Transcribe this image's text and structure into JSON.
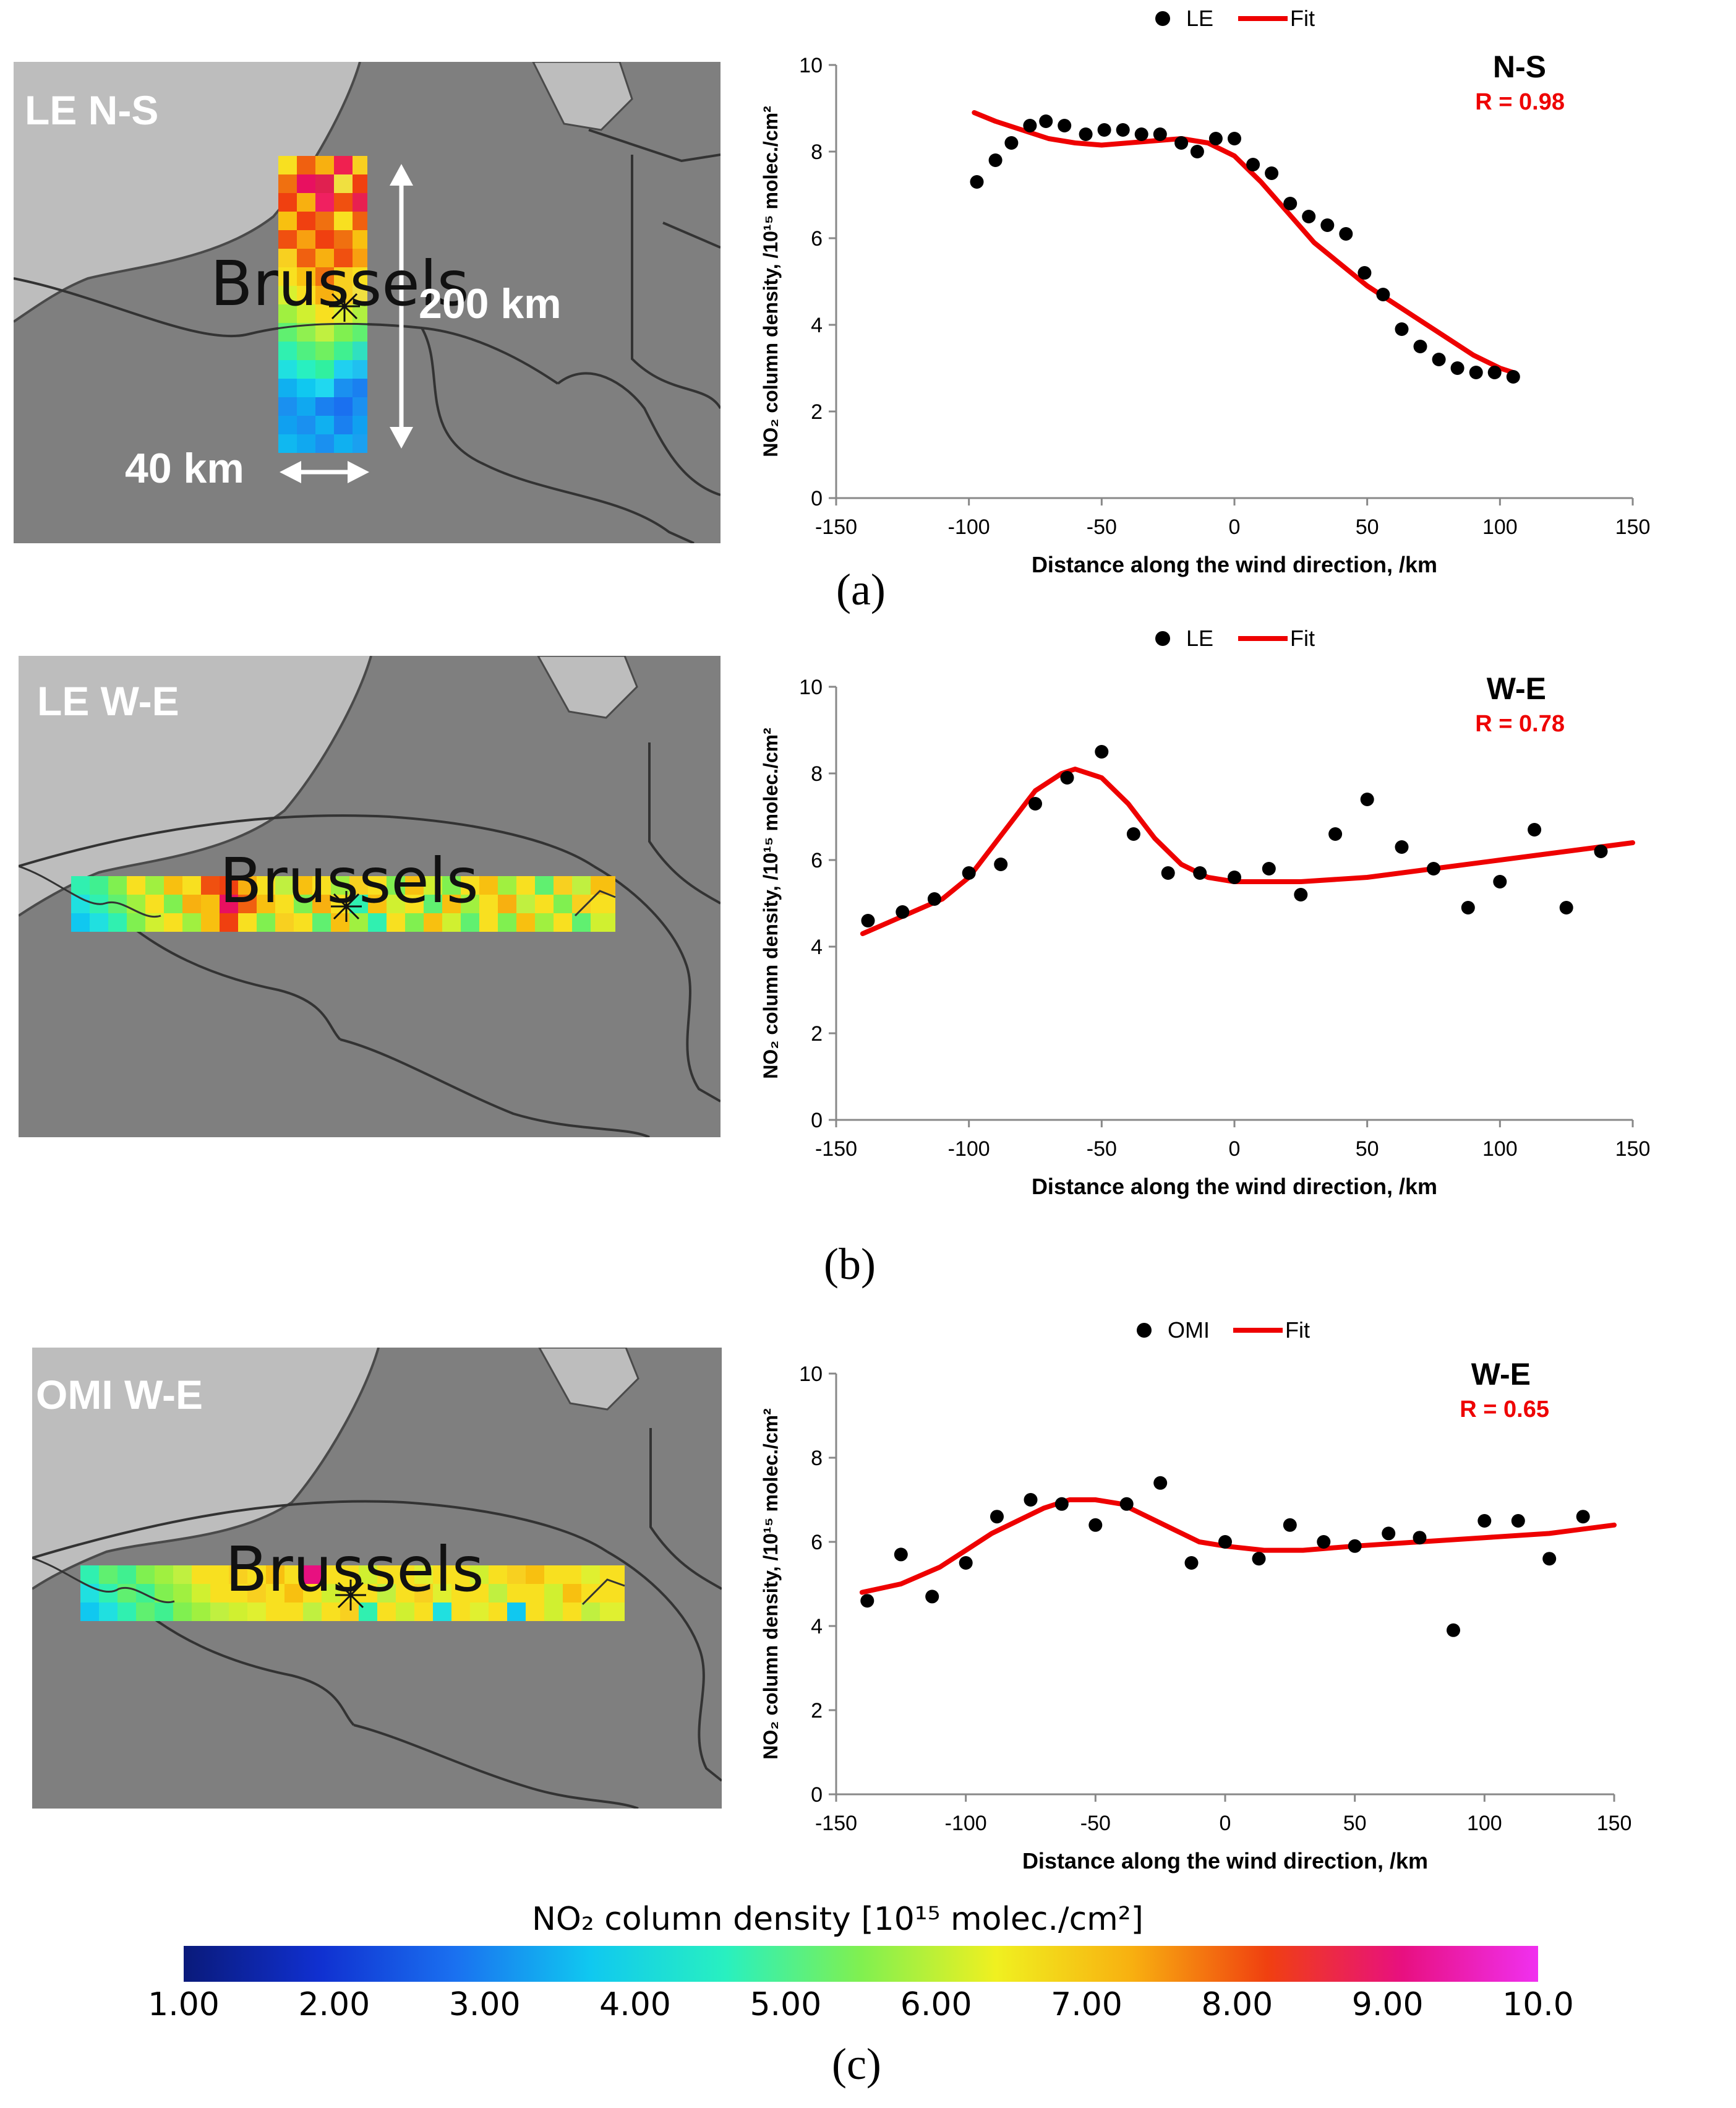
{
  "panels": [
    {
      "caption": "(a)",
      "map": {
        "label": "LE N-S",
        "city": "Brussels",
        "length_label": "200 km",
        "width_label": "40 km"
      }
    },
    {
      "caption": "(b)",
      "map": {
        "label": "LE W-E",
        "city": "Brussels"
      }
    },
    {
      "caption": "(c)",
      "map": {
        "label": "OMI W-E",
        "city": "Brussels"
      }
    }
  ],
  "colorbar": {
    "title": "NO₂ column density [10¹⁵ molec./cm²]",
    "ticks": [
      "1.00",
      "2.00",
      "3.00",
      "4.00",
      "5.00",
      "6.00",
      "7.00",
      "8.00",
      "9.00",
      "10.0"
    ],
    "colors": [
      "#0a1a7a",
      "#1030d0",
      "#1a70f0",
      "#10c8f0",
      "#28f0c0",
      "#80f050",
      "#f0f020",
      "#f8b010",
      "#f04010",
      "#e81080",
      "#f030f0"
    ]
  },
  "chart_data": [
    {
      "type": "scatter",
      "title": "N-S",
      "annotation": "R = 0.98",
      "xlabel": "Distance along the wind direction, /km",
      "ylabel": "NO₂ column density, /10¹⁵ molec./cm²",
      "xlim": [
        -150,
        150
      ],
      "ylim": [
        0,
        10
      ],
      "xticks": [
        "-150",
        "-100",
        "-50",
        "0",
        "50",
        "100",
        "150"
      ],
      "yticks": [
        "0",
        "2",
        "4",
        "6",
        "8",
        "10"
      ],
      "legend": [
        "LE",
        "Fit"
      ],
      "series": [
        {
          "name": "LE",
          "x": [
            -97,
            -90,
            -84,
            -77,
            -71,
            -64,
            -56,
            -49,
            -42,
            -35,
            -28,
            -20,
            -14,
            -7,
            0,
            7,
            14,
            21,
            28,
            35,
            42,
            49,
            56,
            63,
            70,
            77,
            84,
            91,
            98,
            105
          ],
          "y": [
            7.3,
            7.8,
            8.2,
            8.6,
            8.7,
            8.6,
            8.4,
            8.5,
            8.5,
            8.4,
            8.4,
            8.2,
            8.0,
            8.3,
            8.3,
            7.7,
            7.5,
            6.8,
            6.5,
            6.3,
            6.1,
            5.2,
            4.7,
            3.9,
            3.5,
            3.2,
            3.0,
            2.9,
            2.9,
            2.8
          ]
        },
        {
          "name": "Fit",
          "x": [
            -98,
            -90,
            -80,
            -70,
            -60,
            -50,
            -40,
            -30,
            -20,
            -10,
            0,
            10,
            20,
            30,
            40,
            50,
            60,
            70,
            80,
            90,
            100,
            105
          ],
          "y": [
            8.9,
            8.7,
            8.5,
            8.3,
            8.2,
            8.15,
            8.2,
            8.25,
            8.3,
            8.2,
            7.9,
            7.3,
            6.6,
            5.9,
            5.4,
            4.9,
            4.5,
            4.1,
            3.7,
            3.3,
            3.0,
            2.9
          ]
        }
      ]
    },
    {
      "type": "scatter",
      "title": "W-E",
      "annotation": "R = 0.78",
      "xlabel": "Distance along the wind direction, /km",
      "ylabel": "NO₂ column density, /10¹⁵ molec./cm²",
      "xlim": [
        -150,
        150
      ],
      "ylim": [
        0,
        10
      ],
      "xticks": [
        "-150",
        "-100",
        "-50",
        "0",
        "50",
        "100",
        "150"
      ],
      "yticks": [
        "0",
        "2",
        "4",
        "6",
        "8",
        "10"
      ],
      "legend": [
        "LE",
        "Fit"
      ],
      "series": [
        {
          "name": "LE",
          "x": [
            -138,
            -125,
            -113,
            -100,
            -88,
            -75,
            -63,
            -50,
            -38,
            -25,
            -13,
            0,
            13,
            25,
            38,
            50,
            63,
            75,
            88,
            100,
            113,
            125,
            138
          ],
          "y": [
            4.6,
            4.8,
            5.1,
            5.7,
            5.9,
            7.3,
            7.9,
            8.5,
            6.6,
            5.7,
            5.7,
            5.6,
            5.8,
            5.2,
            6.6,
            7.4,
            6.3,
            5.8,
            4.9,
            5.5,
            6.7,
            4.9,
            6.2
          ]
        },
        {
          "name": "Fit",
          "x": [
            -140,
            -125,
            -110,
            -100,
            -90,
            -80,
            -75,
            -65,
            -60,
            -50,
            -40,
            -30,
            -20,
            -10,
            0,
            15,
            25,
            50,
            75,
            100,
            125,
            150
          ],
          "y": [
            4.3,
            4.7,
            5.1,
            5.6,
            6.4,
            7.2,
            7.6,
            8.0,
            8.1,
            7.9,
            7.3,
            6.5,
            5.9,
            5.6,
            5.5,
            5.5,
            5.5,
            5.6,
            5.8,
            6.0,
            6.2,
            6.4
          ]
        }
      ]
    },
    {
      "type": "scatter",
      "title": "W-E",
      "annotation": "R = 0.65",
      "xlabel": "Distance along the wind direction, /km",
      "ylabel": "NO₂ column density, /10¹⁵ molec./cm²",
      "xlim": [
        -150,
        150
      ],
      "ylim": [
        0,
        10
      ],
      "xticks": [
        "-150",
        "-100",
        "-50",
        "0",
        "50",
        "100",
        "150"
      ],
      "yticks": [
        "0",
        "2",
        "4",
        "6",
        "8",
        "10"
      ],
      "legend": [
        "OMI",
        "Fit"
      ],
      "series": [
        {
          "name": "OMI",
          "x": [
            -138,
            -125,
            -113,
            -100,
            -88,
            -75,
            -63,
            -50,
            -38,
            -25,
            -13,
            0,
            13,
            25,
            38,
            50,
            63,
            75,
            88,
            100,
            113,
            125,
            138
          ],
          "y": [
            4.6,
            5.7,
            4.7,
            5.5,
            6.6,
            7.0,
            6.9,
            6.4,
            6.9,
            7.4,
            5.5,
            6.0,
            5.6,
            6.4,
            6.0,
            5.9,
            6.2,
            6.1,
            3.9,
            6.5,
            6.5,
            5.6,
            6.6
          ]
        },
        {
          "name": "Fit",
          "x": [
            -140,
            -125,
            -110,
            -100,
            -90,
            -80,
            -70,
            -60,
            -50,
            -40,
            -30,
            -20,
            -10,
            0,
            15,
            30,
            50,
            75,
            100,
            125,
            150
          ],
          "y": [
            4.8,
            5.0,
            5.4,
            5.8,
            6.2,
            6.5,
            6.8,
            7.0,
            7.0,
            6.9,
            6.6,
            6.3,
            6.0,
            5.9,
            5.8,
            5.8,
            5.9,
            6.0,
            6.1,
            6.2,
            6.4
          ]
        }
      ]
    }
  ]
}
